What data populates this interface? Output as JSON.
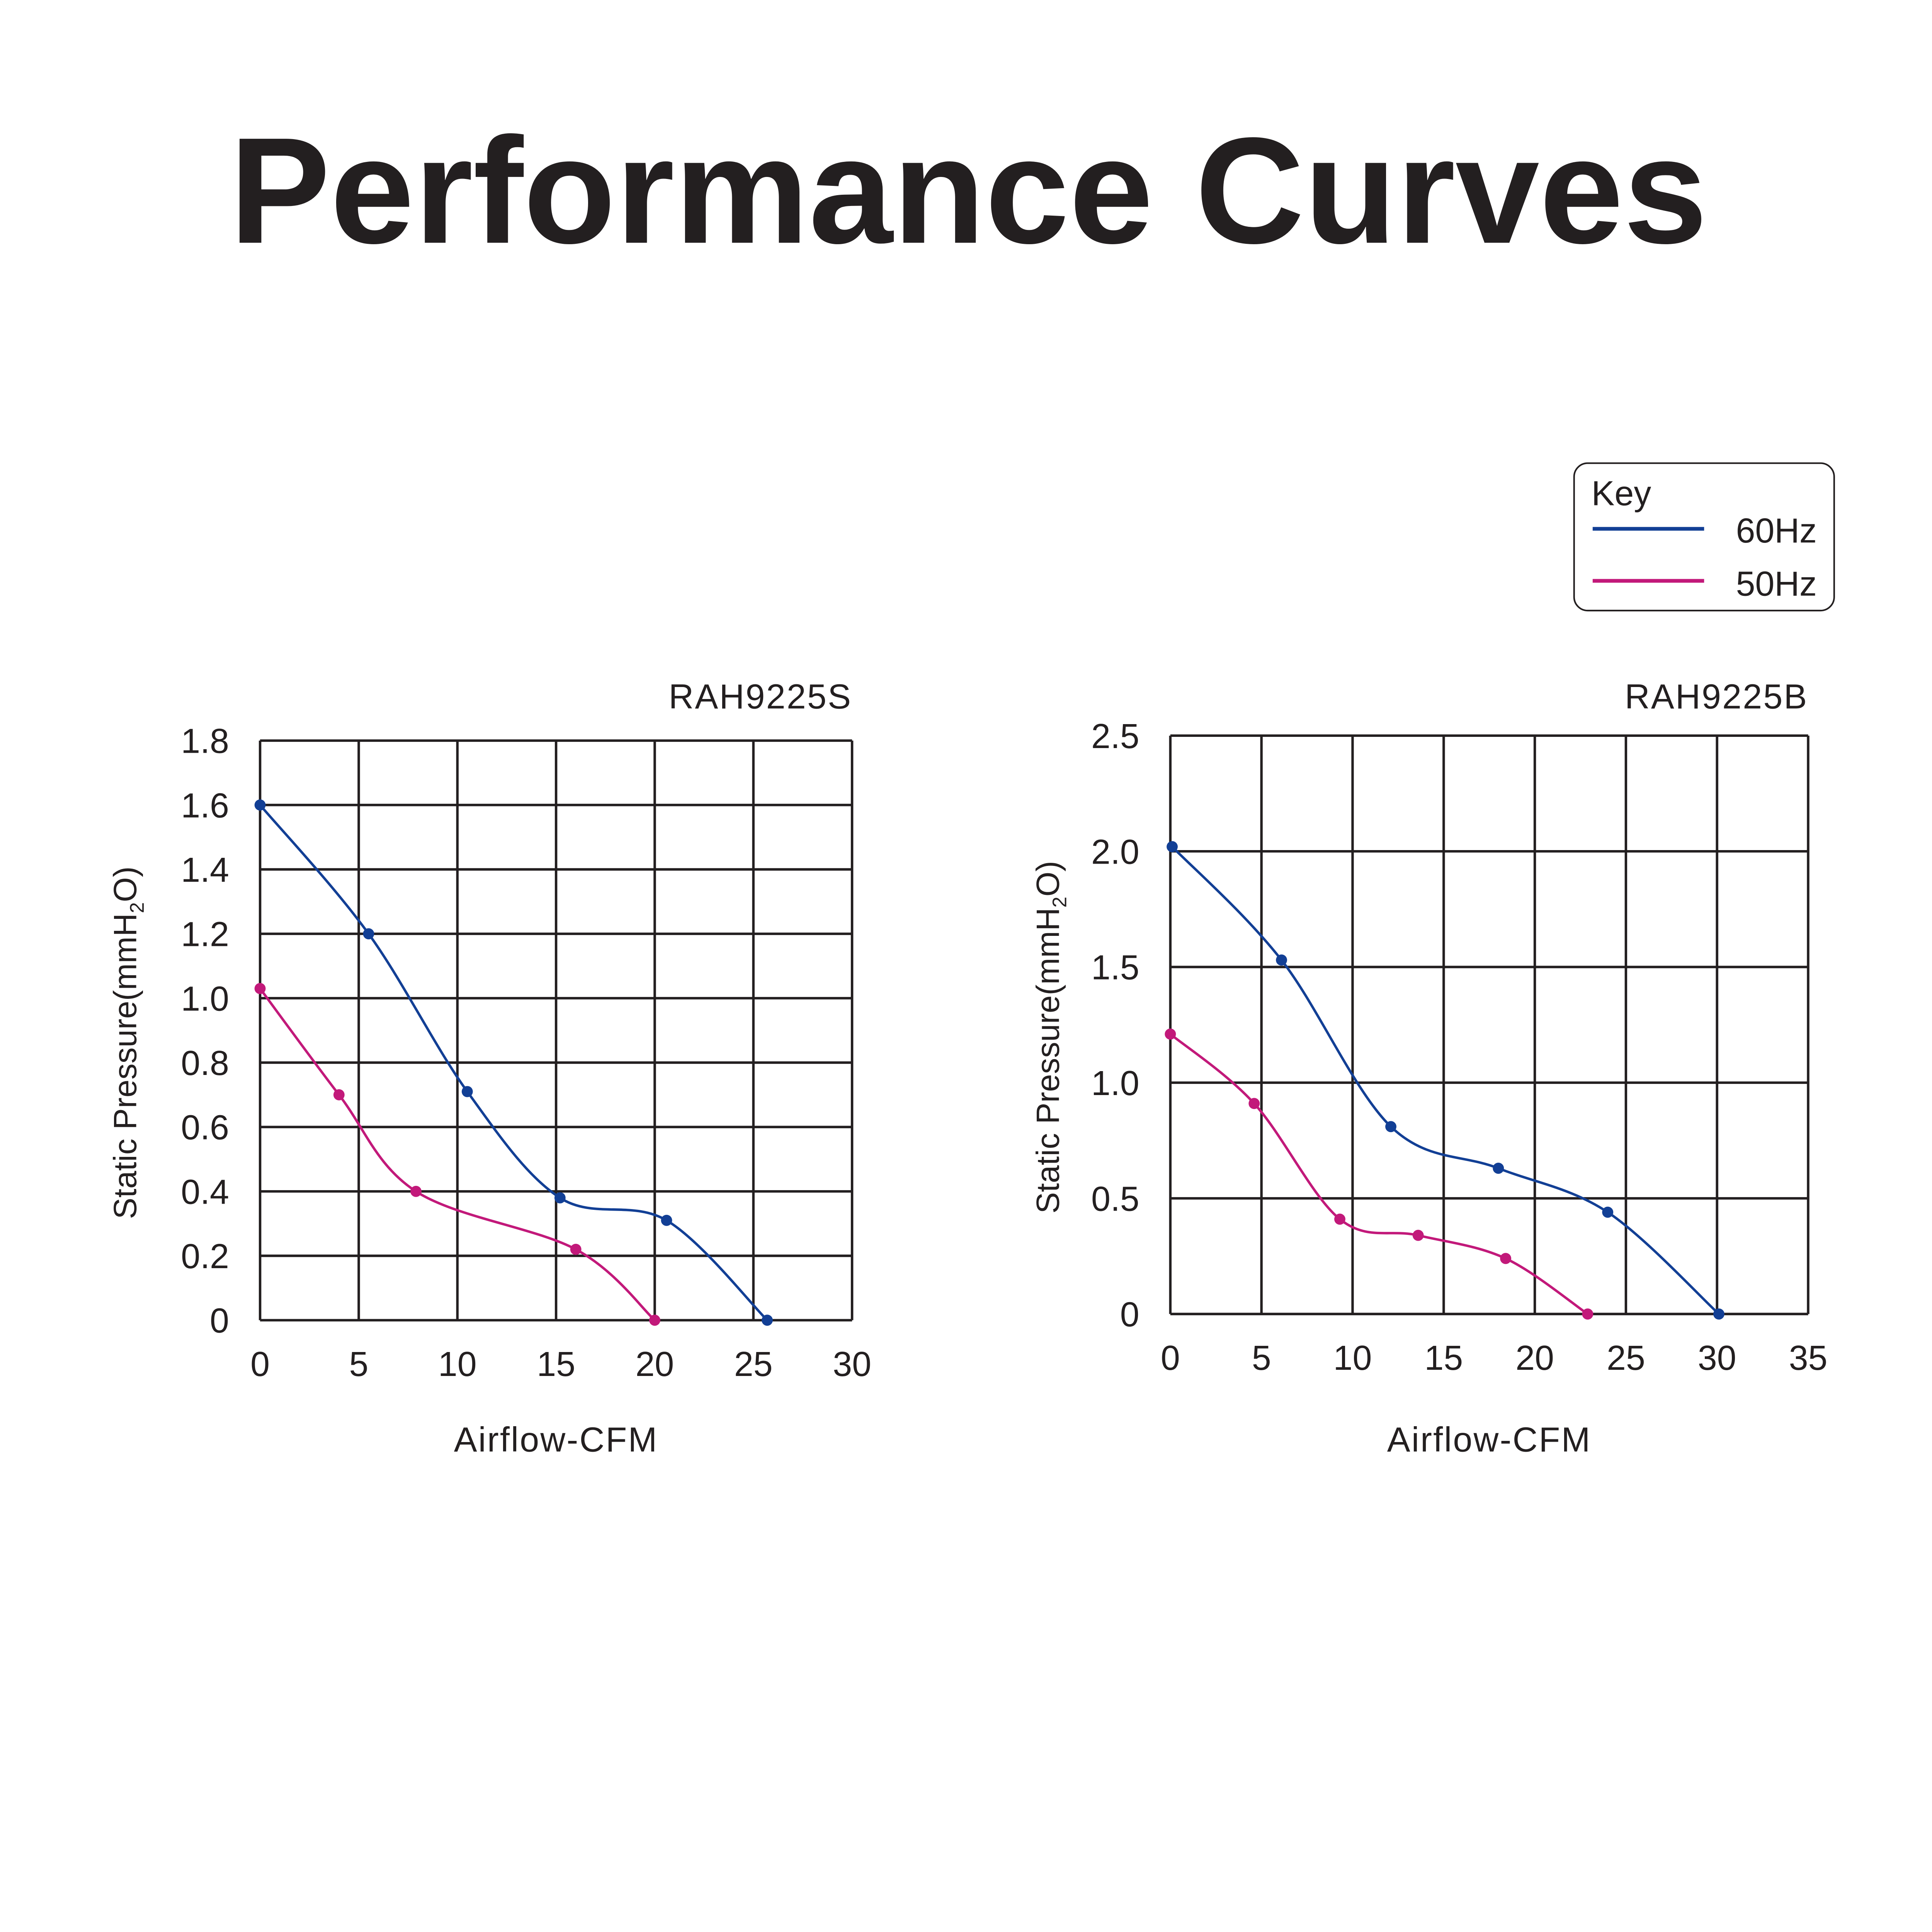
{
  "title": "Performance Curves",
  "legend": {
    "title": "Key",
    "placement": "top-right",
    "entries": [
      {
        "label": "60Hz",
        "color": "#123f95"
      },
      {
        "label": "50Hz",
        "color": "#c2197a"
      }
    ]
  },
  "chart_data": [
    {
      "type": "line",
      "title": "RAH9225S",
      "xlabel": "Airflow-CFM",
      "ylabel": "Static Pressure(mmH",
      "ylabel_sub": "2",
      "ylabel_tail": "O)",
      "xlim": [
        0,
        30
      ],
      "ylim": [
        0,
        1.8
      ],
      "xticks": [
        0,
        5,
        10,
        15,
        20,
        25,
        30
      ],
      "xtick_labels": [
        "0",
        "5",
        "10",
        "15",
        "20",
        "25",
        "30"
      ],
      "yticks": [
        0,
        0.2,
        0.4,
        0.6,
        0.8,
        1.0,
        1.2,
        1.4,
        1.6,
        1.8
      ],
      "ytick_labels": [
        "0",
        "0.2",
        "0.4",
        "0.6",
        "0.8",
        "1.0",
        "1.2",
        "1.4",
        "1.6",
        "1.8"
      ],
      "grid": true,
      "series": [
        {
          "name": "60Hz",
          "color": "#123f95",
          "x": [
            0,
            5.5,
            10.5,
            15.2,
            20.6,
            25.7
          ],
          "y": [
            1.6,
            1.2,
            0.71,
            0.38,
            0.31,
            0
          ]
        },
        {
          "name": "50Hz",
          "color": "#c2197a",
          "x": [
            0,
            4.0,
            7.9,
            16.0,
            20.0
          ],
          "y": [
            1.03,
            0.7,
            0.4,
            0.22,
            0
          ]
        }
      ]
    },
    {
      "type": "line",
      "title": "RAH9225B",
      "xlabel": "Airflow-CFM",
      "ylabel": "Static Pressure(mmH",
      "ylabel_sub": "2",
      "ylabel_tail": "O)",
      "xlim": [
        0,
        35
      ],
      "ylim": [
        0,
        2.5
      ],
      "xticks": [
        0,
        5,
        10,
        15,
        20,
        25,
        30,
        35
      ],
      "xtick_labels": [
        "0",
        "5",
        "10",
        "15",
        "20",
        "25",
        "30",
        "35"
      ],
      "yticks": [
        0,
        0.5,
        1.0,
        1.5,
        2.0,
        2.5
      ],
      "ytick_labels": [
        "0",
        "0.5",
        "1.0",
        "1.5",
        "2.0",
        "2.5"
      ],
      "grid": true,
      "series": [
        {
          "name": "60Hz",
          "color": "#123f95",
          "x": [
            0.1,
            6.1,
            12.1,
            18.0,
            24.0,
            30.1
          ],
          "y": [
            2.02,
            1.53,
            0.81,
            0.63,
            0.44,
            0
          ]
        },
        {
          "name": "50Hz",
          "color": "#c2197a",
          "x": [
            0,
            4.6,
            9.3,
            13.6,
            18.4,
            22.9
          ],
          "y": [
            1.21,
            0.91,
            0.41,
            0.34,
            0.24,
            0
          ]
        }
      ]
    }
  ]
}
